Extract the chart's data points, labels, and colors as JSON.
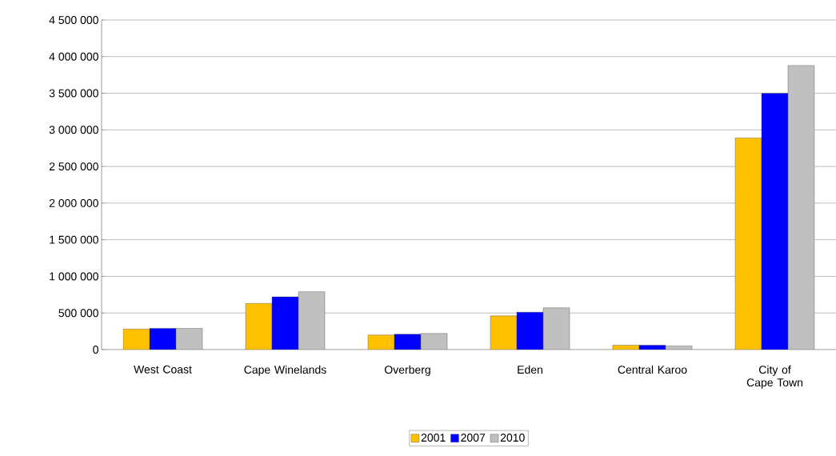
{
  "chart_data": {
    "type": "bar",
    "categories": [
      "West Coast",
      "Cape Winelands",
      "Overberg",
      "Eden",
      "Central Karoo",
      "City of Cape Town"
    ],
    "series": [
      {
        "name": "2001",
        "color": "#ffc000",
        "values": [
          280000,
          630000,
          200000,
          460000,
          60000,
          2890000
        ]
      },
      {
        "name": "2007",
        "color": "#0000ff",
        "values": [
          290000,
          720000,
          210000,
          510000,
          60000,
          3500000
        ]
      },
      {
        "name": "2010",
        "color": "#c0c0c0",
        "values": [
          290000,
          790000,
          220000,
          570000,
          50000,
          3880000
        ]
      }
    ],
    "ylim": [
      0,
      4500000
    ],
    "yticks": [
      {
        "value": 0,
        "label": "0"
      },
      {
        "value": 500000,
        "label": "500 000"
      },
      {
        "value": 1000000,
        "label": "1 000 000"
      },
      {
        "value": 1500000,
        "label": "1 500 000"
      },
      {
        "value": 2000000,
        "label": "2 000 000"
      },
      {
        "value": 2500000,
        "label": "2 500 000"
      },
      {
        "value": 3000000,
        "label": "3 000 000"
      },
      {
        "value": 3500000,
        "label": "3 500 000"
      },
      {
        "value": 4000000,
        "label": "4 000 000"
      },
      {
        "value": 4500000,
        "label": "4 500 000"
      }
    ],
    "grid": "y",
    "legend": "bottom"
  }
}
